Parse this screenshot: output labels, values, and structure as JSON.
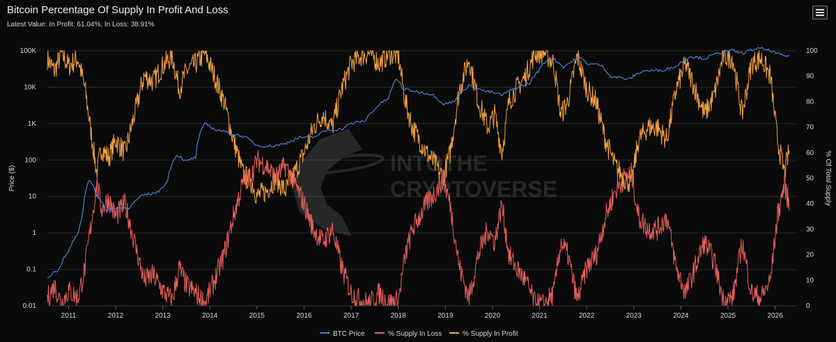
{
  "header": {
    "title": "Bitcoin Percentage Of Supply In Profit And Loss",
    "subtitle": "Latest Value: In Profit: 61.04%, In Loss: 38.91%"
  },
  "watermark": {
    "line1": "INTOTHE",
    "line2": "CRYPTOVERSE"
  },
  "colors": {
    "background": "#0a0a0a",
    "btc_price": "#4f7fd8",
    "supply_in_loss": "#e8605a",
    "supply_in_profit": "#f5a340",
    "grid": "#2a2a2a"
  },
  "chart_data": {
    "type": "line",
    "title": "Bitcoin Percentage Of Supply In Profit And Loss",
    "grid": true,
    "legend_position": "bottom-center",
    "x_axis": {
      "min": 2010.55,
      "max": 2026.45,
      "ticks": [
        "2011",
        "2012",
        "2013",
        "2014",
        "2015",
        "2016",
        "2017",
        "2018",
        "2019",
        "2020",
        "2021",
        "2022",
        "2023",
        "2024",
        "2025",
        "2026"
      ]
    },
    "y_left": {
      "label": "Price ($)",
      "scale": "log",
      "range": [
        0.01,
        100000
      ],
      "ticks": [
        "0.01",
        "0.1",
        "1",
        "10",
        "100",
        "1K",
        "10K",
        "100K"
      ]
    },
    "y_right": {
      "label": "% Of Total Supply",
      "scale": "linear",
      "range": [
        0,
        100
      ],
      "ticks": [
        "0",
        "10",
        "20",
        "30",
        "40",
        "50",
        "60",
        "70",
        "80",
        "90",
        "100"
      ]
    },
    "series": [
      {
        "name": "BTC Price",
        "axis": "left",
        "points": [
          [
            2010.55,
            0.06
          ],
          [
            2010.8,
            0.1
          ],
          [
            2011.0,
            0.3
          ],
          [
            2011.2,
            0.9
          ],
          [
            2011.3,
            3
          ],
          [
            2011.45,
            30
          ],
          [
            2011.6,
            10
          ],
          [
            2011.8,
            4
          ],
          [
            2012.0,
            5
          ],
          [
            2012.3,
            5
          ],
          [
            2012.6,
            11
          ],
          [
            2012.9,
            13
          ],
          [
            2013.1,
            25
          ],
          [
            2013.3,
            140
          ],
          [
            2013.5,
            90
          ],
          [
            2013.7,
            120
          ],
          [
            2013.9,
            1000
          ],
          [
            2014.1,
            700
          ],
          [
            2014.4,
            550
          ],
          [
            2014.7,
            450
          ],
          [
            2015.0,
            250
          ],
          [
            2015.3,
            240
          ],
          [
            2015.6,
            280
          ],
          [
            2015.9,
            420
          ],
          [
            2016.2,
            420
          ],
          [
            2016.5,
            670
          ],
          [
            2016.8,
            700
          ],
          [
            2017.0,
            1000
          ],
          [
            2017.3,
            1200
          ],
          [
            2017.5,
            2500
          ],
          [
            2017.8,
            5000
          ],
          [
            2017.97,
            17000
          ],
          [
            2018.1,
            9000
          ],
          [
            2018.4,
            7500
          ],
          [
            2018.7,
            6500
          ],
          [
            2018.95,
            3500
          ],
          [
            2019.2,
            4000
          ],
          [
            2019.5,
            11000
          ],
          [
            2019.8,
            8000
          ],
          [
            2020.0,
            7200
          ],
          [
            2020.2,
            6000
          ],
          [
            2020.5,
            9500
          ],
          [
            2020.8,
            13000
          ],
          [
            2020.99,
            29000
          ],
          [
            2021.15,
            55000
          ],
          [
            2021.3,
            60000
          ],
          [
            2021.5,
            35000
          ],
          [
            2021.85,
            65000
          ],
          [
            2022.0,
            45000
          ],
          [
            2022.3,
            40000
          ],
          [
            2022.5,
            20000
          ],
          [
            2022.9,
            16500
          ],
          [
            2023.2,
            28000
          ],
          [
            2023.6,
            29000
          ],
          [
            2023.9,
            37000
          ],
          [
            2024.2,
            70000
          ],
          [
            2024.5,
            60000
          ],
          [
            2024.9,
            95000
          ],
          [
            2025.1,
            100000
          ],
          [
            2025.3,
            85000
          ],
          [
            2025.6,
            115000
          ],
          [
            2025.8,
            110000
          ],
          [
            2026.0,
            88000
          ],
          [
            2026.2,
            70000
          ],
          [
            2026.3,
            76000
          ]
        ]
      },
      {
        "name": "% Supply In Loss",
        "axis": "right",
        "points": [
          [
            2010.55,
            3
          ],
          [
            2010.7,
            8
          ],
          [
            2010.85,
            1
          ],
          [
            2011.0,
            6
          ],
          [
            2011.2,
            3
          ],
          [
            2011.35,
            15
          ],
          [
            2011.5,
            35
          ],
          [
            2011.6,
            48
          ],
          [
            2011.7,
            38
          ],
          [
            2011.85,
            42
          ],
          [
            2012.0,
            35
          ],
          [
            2012.2,
            40
          ],
          [
            2012.4,
            25
          ],
          [
            2012.6,
            10
          ],
          [
            2012.8,
            12
          ],
          [
            2013.0,
            6
          ],
          [
            2013.2,
            2
          ],
          [
            2013.35,
            15
          ],
          [
            2013.5,
            8
          ],
          [
            2013.7,
            5
          ],
          [
            2013.9,
            1
          ],
          [
            2014.1,
            10
          ],
          [
            2014.3,
            20
          ],
          [
            2014.5,
            35
          ],
          [
            2014.7,
            48
          ],
          [
            2014.9,
            52
          ],
          [
            2015.0,
            57
          ],
          [
            2015.2,
            55
          ],
          [
            2015.4,
            50
          ],
          [
            2015.6,
            55
          ],
          [
            2015.8,
            48
          ],
          [
            2016.0,
            40
          ],
          [
            2016.2,
            30
          ],
          [
            2016.4,
            25
          ],
          [
            2016.6,
            30
          ],
          [
            2016.8,
            15
          ],
          [
            2017.0,
            5
          ],
          [
            2017.2,
            2
          ],
          [
            2017.4,
            1
          ],
          [
            2017.6,
            5
          ],
          [
            2017.8,
            1
          ],
          [
            2018.0,
            2
          ],
          [
            2018.15,
            20
          ],
          [
            2018.3,
            30
          ],
          [
            2018.45,
            35
          ],
          [
            2018.6,
            40
          ],
          [
            2018.8,
            45
          ],
          [
            2018.95,
            50
          ],
          [
            2019.1,
            40
          ],
          [
            2019.3,
            15
          ],
          [
            2019.5,
            3
          ],
          [
            2019.7,
            20
          ],
          [
            2019.9,
            30
          ],
          [
            2020.05,
            25
          ],
          [
            2020.2,
            40
          ],
          [
            2020.35,
            20
          ],
          [
            2020.5,
            15
          ],
          [
            2020.7,
            10
          ],
          [
            2020.9,
            1
          ],
          [
            2021.1,
            0.5
          ],
          [
            2021.3,
            5
          ],
          [
            2021.45,
            25
          ],
          [
            2021.6,
            20
          ],
          [
            2021.8,
            2
          ],
          [
            2022.0,
            15
          ],
          [
            2022.2,
            20
          ],
          [
            2022.4,
            35
          ],
          [
            2022.6,
            45
          ],
          [
            2022.8,
            50
          ],
          [
            2022.95,
            52
          ],
          [
            2023.1,
            35
          ],
          [
            2023.3,
            30
          ],
          [
            2023.5,
            30
          ],
          [
            2023.7,
            35
          ],
          [
            2023.9,
            15
          ],
          [
            2024.1,
            5
          ],
          [
            2024.3,
            15
          ],
          [
            2024.5,
            25
          ],
          [
            2024.7,
            18
          ],
          [
            2024.9,
            2
          ],
          [
            2025.1,
            3
          ],
          [
            2025.3,
            25
          ],
          [
            2025.5,
            5
          ],
          [
            2025.7,
            3
          ],
          [
            2025.9,
            10
          ],
          [
            2026.05,
            35
          ],
          [
            2026.2,
            48
          ],
          [
            2026.3,
            39
          ]
        ]
      },
      {
        "name": "% Supply In Profit",
        "axis": "right",
        "points": [
          [
            2010.55,
            97
          ],
          [
            2010.7,
            92
          ],
          [
            2010.85,
            99
          ],
          [
            2011.0,
            94
          ],
          [
            2011.2,
            97
          ],
          [
            2011.35,
            85
          ],
          [
            2011.5,
            65
          ],
          [
            2011.6,
            52
          ],
          [
            2011.7,
            62
          ],
          [
            2011.85,
            58
          ],
          [
            2012.0,
            65
          ],
          [
            2012.2,
            60
          ],
          [
            2012.4,
            75
          ],
          [
            2012.6,
            90
          ],
          [
            2012.8,
            88
          ],
          [
            2013.0,
            94
          ],
          [
            2013.2,
            98
          ],
          [
            2013.35,
            85
          ],
          [
            2013.5,
            92
          ],
          [
            2013.7,
            95
          ],
          [
            2013.9,
            99
          ],
          [
            2014.1,
            90
          ],
          [
            2014.3,
            80
          ],
          [
            2014.5,
            65
          ],
          [
            2014.7,
            52
          ],
          [
            2014.9,
            48
          ],
          [
            2015.0,
            43
          ],
          [
            2015.2,
            45
          ],
          [
            2015.4,
            50
          ],
          [
            2015.6,
            45
          ],
          [
            2015.8,
            52
          ],
          [
            2016.0,
            60
          ],
          [
            2016.2,
            70
          ],
          [
            2016.4,
            75
          ],
          [
            2016.6,
            70
          ],
          [
            2016.8,
            85
          ],
          [
            2017.0,
            95
          ],
          [
            2017.2,
            98
          ],
          [
            2017.4,
            99
          ],
          [
            2017.6,
            95
          ],
          [
            2017.8,
            99
          ],
          [
            2018.0,
            98
          ],
          [
            2018.15,
            80
          ],
          [
            2018.3,
            70
          ],
          [
            2018.45,
            65
          ],
          [
            2018.6,
            60
          ],
          [
            2018.8,
            55
          ],
          [
            2018.95,
            50
          ],
          [
            2019.1,
            60
          ],
          [
            2019.3,
            85
          ],
          [
            2019.5,
            97
          ],
          [
            2019.7,
            80
          ],
          [
            2019.9,
            70
          ],
          [
            2020.05,
            75
          ],
          [
            2020.2,
            60
          ],
          [
            2020.35,
            80
          ],
          [
            2020.5,
            85
          ],
          [
            2020.7,
            90
          ],
          [
            2020.9,
            99
          ],
          [
            2021.1,
            99.5
          ],
          [
            2021.3,
            95
          ],
          [
            2021.45,
            75
          ],
          [
            2021.6,
            80
          ],
          [
            2021.8,
            98
          ],
          [
            2022.0,
            85
          ],
          [
            2022.2,
            80
          ],
          [
            2022.4,
            65
          ],
          [
            2022.6,
            55
          ],
          [
            2022.8,
            50
          ],
          [
            2022.95,
            48
          ],
          [
            2023.1,
            65
          ],
          [
            2023.3,
            70
          ],
          [
            2023.5,
            70
          ],
          [
            2023.7,
            65
          ],
          [
            2023.9,
            85
          ],
          [
            2024.1,
            95
          ],
          [
            2024.3,
            85
          ],
          [
            2024.5,
            75
          ],
          [
            2024.7,
            82
          ],
          [
            2024.9,
            98
          ],
          [
            2025.1,
            97
          ],
          [
            2025.3,
            75
          ],
          [
            2025.5,
            95
          ],
          [
            2025.7,
            97
          ],
          [
            2025.9,
            90
          ],
          [
            2026.05,
            65
          ],
          [
            2026.2,
            52
          ],
          [
            2026.3,
            61
          ]
        ]
      }
    ]
  }
}
